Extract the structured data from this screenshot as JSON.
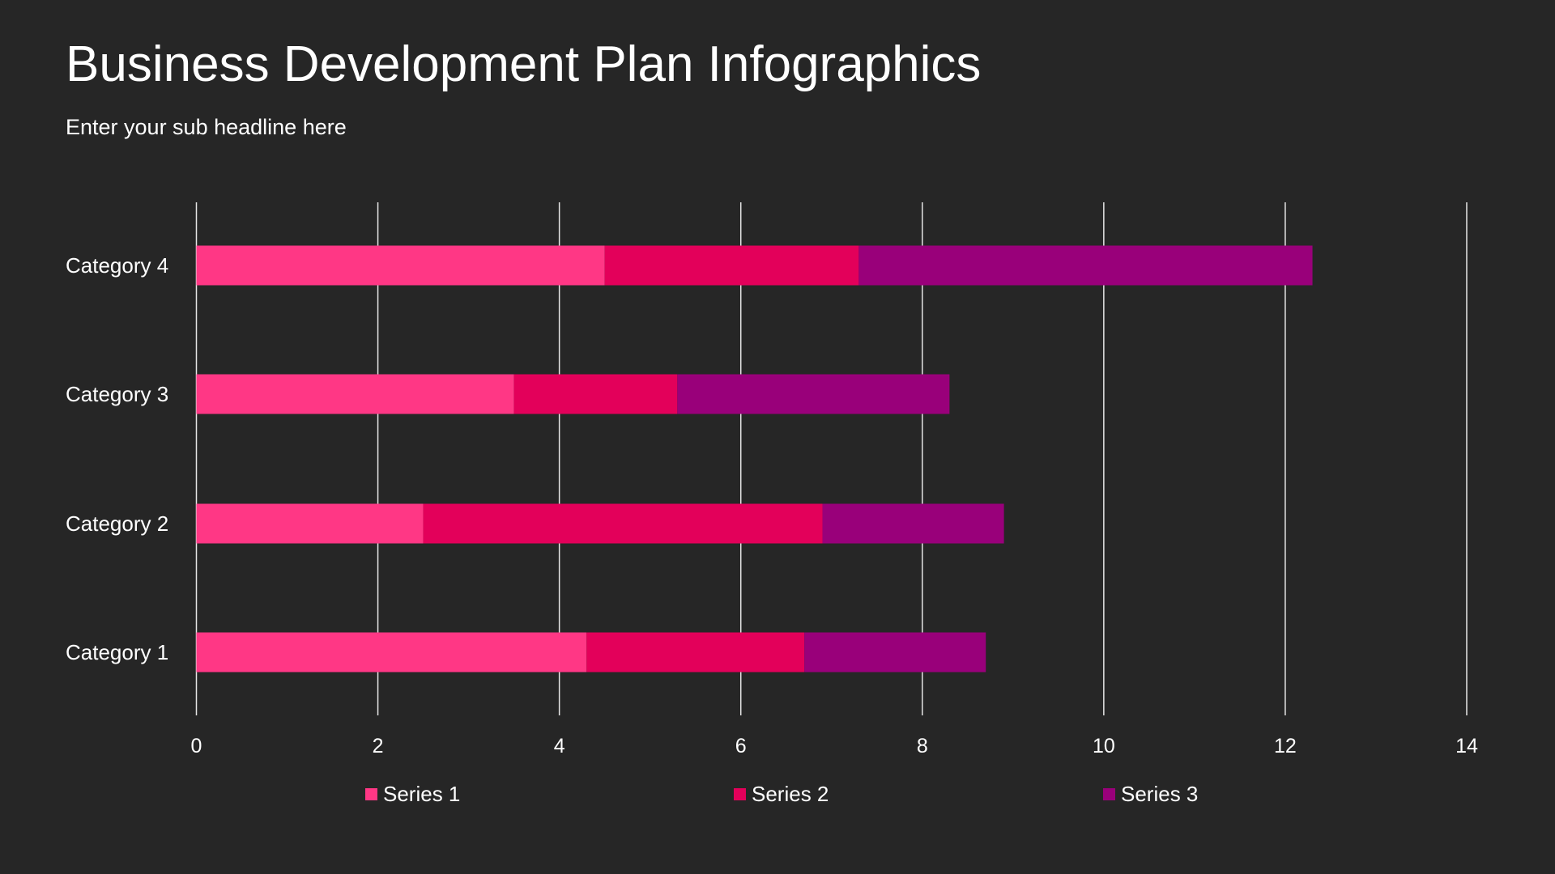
{
  "title": "Business Development Plan Infographics",
  "subtitle": "Enter your sub headline here",
  "chart_data": {
    "type": "bar",
    "orientation": "horizontal",
    "stacked": true,
    "categories": [
      "Category 1",
      "Category 2",
      "Category 3",
      "Category 4"
    ],
    "series": [
      {
        "name": "Series 1",
        "values": [
          4.3,
          2.5,
          3.5,
          4.5
        ],
        "color": "#FF3785"
      },
      {
        "name": "Series 2",
        "values": [
          2.4,
          4.4,
          1.8,
          2.8
        ],
        "color": "#E3005A"
      },
      {
        "name": "Series 3",
        "values": [
          2.0,
          2.0,
          3.0,
          5.0
        ],
        "color": "#99007A"
      }
    ],
    "xlim": [
      0,
      14
    ],
    "xticks": [
      0,
      2,
      4,
      6,
      8,
      10,
      12,
      14
    ],
    "grid": "vertical",
    "legend": "bottom",
    "background": "#262626"
  }
}
